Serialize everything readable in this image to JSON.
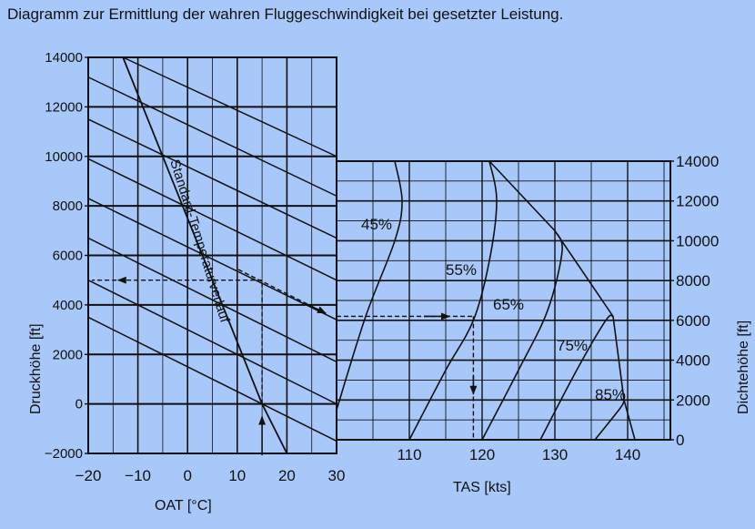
{
  "title": "Diagramm zur Ermittlung der wahren Fluggeschwindigkeit bei gesetzter Leistung.",
  "colors": {
    "background": "#a8c8fa",
    "ink": "#111111"
  },
  "chart_data": [
    {
      "type": "line",
      "name": "left-panel",
      "xlabel": "OAT [°C]",
      "ylabel": "Druckhöhe [ft]",
      "xlim": [
        -20,
        30
      ],
      "ylim": [
        -2000,
        14000
      ],
      "x_ticks": [
        -20,
        -10,
        0,
        10,
        20,
        30
      ],
      "x_tick_labels": [
        "−20",
        "−10",
        "0",
        "10",
        "20",
        "30"
      ],
      "y_ticks": [
        -2000,
        0,
        2000,
        4000,
        6000,
        8000,
        10000,
        12000,
        14000
      ],
      "y_tick_labels": [
        "−2000",
        "0",
        "2000",
        "4000",
        "6000",
        "8000",
        "10000",
        "12000",
        "14000"
      ],
      "grid": true,
      "standard_temperature_line": {
        "label": "Standard-Temperaturverlauf",
        "points": [
          [
            -13,
            14000
          ],
          [
            15,
            0
          ],
          [
            20,
            -2000
          ]
        ]
      },
      "density_guide_lines": [
        [
          [
            -20,
            3500
          ],
          [
            30,
            -1500
          ]
        ],
        [
          [
            -20,
            5000
          ],
          [
            30,
            0
          ]
        ],
        [
          [
            -20,
            6700
          ],
          [
            30,
            1700
          ]
        ],
        [
          [
            -20,
            8300
          ],
          [
            30,
            3400
          ]
        ],
        [
          [
            -20,
            9900
          ],
          [
            30,
            5000
          ]
        ],
        [
          [
            -20,
            11500
          ],
          [
            30,
            6700
          ]
        ],
        [
          [
            -20,
            13200
          ],
          [
            30,
            8400
          ]
        ],
        [
          [
            -13,
            14000
          ],
          [
            30,
            10000
          ]
        ]
      ],
      "example_path": [
        [
          15,
          -2000
        ],
        [
          15,
          5000
        ],
        [
          -20,
          5000
        ]
      ]
    },
    {
      "type": "line",
      "name": "right-panel",
      "xlabel": "TAS [kts]",
      "ylabel": "Dichtehöhe [ft]",
      "xlim": [
        100,
        145
      ],
      "ylim": [
        0,
        14000
      ],
      "x_ticks": [
        110,
        120,
        130,
        140
      ],
      "x_tick_labels": [
        "110",
        "120",
        "130",
        "140"
      ],
      "y_ticks": [
        0,
        2000,
        4000,
        6000,
        8000,
        10000,
        12000,
        14000
      ],
      "y_tick_labels": [
        "0",
        "2000",
        "4000",
        "6000",
        "8000",
        "10000",
        "12000",
        "14000"
      ],
      "grid": true,
      "series": [
        {
          "name": "45%",
          "points": [
            [
              100,
              1500
            ],
            [
              104,
              6200
            ],
            [
              108,
              10000
            ],
            [
              109,
              12000
            ],
            [
              108,
              14000
            ]
          ]
        },
        {
          "name": "55%",
          "points": [
            [
              110,
              0
            ],
            [
              115,
              3500
            ],
            [
              118.8,
              6000
            ],
            [
              121,
              9000
            ],
            [
              122,
              12000
            ],
            [
              121,
              14000
            ]
          ]
        },
        {
          "name": "65%",
          "points": [
            [
              120,
              0
            ],
            [
              125,
              3500
            ],
            [
              129,
              6500
            ],
            [
              131,
              9500
            ],
            [
              130,
              10500
            ]
          ]
        },
        {
          "name": "75%",
          "points": [
            [
              128,
              0
            ],
            [
              133,
              3500
            ],
            [
              137,
              6000
            ],
            [
              138,
              6200
            ]
          ]
        },
        {
          "name": "85%",
          "points": [
            [
              135.5,
              0
            ],
            [
              139,
              1600
            ],
            [
              139.5,
              2000
            ]
          ]
        }
      ],
      "max_power_line": [
        [
          121,
          14000
        ],
        [
          130,
          10500
        ],
        [
          138,
          6200
        ],
        [
          139.5,
          2000
        ],
        [
          141,
          0
        ]
      ],
      "example_path": [
        [
          100,
          6200
        ],
        [
          118.8,
          6200
        ],
        [
          118.8,
          2000
        ]
      ]
    }
  ]
}
